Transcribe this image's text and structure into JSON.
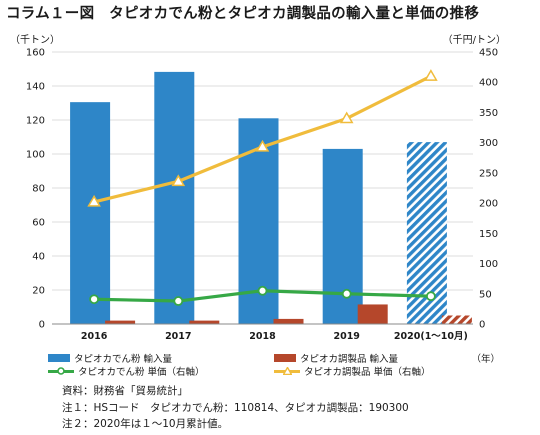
{
  "title": "コラム１ー図　タピオカでん粉とタピオカ調製品の輸入量と単価の推移",
  "left_unit": "（千トン）",
  "right_unit": "（千円/トン）",
  "x_unit": "（年）",
  "chart_data": {
    "type": "bar",
    "categories": [
      "2016",
      "2017",
      "2018",
      "2019",
      "2020(1〜10月)"
    ],
    "y_left": {
      "min": 0,
      "max": 160,
      "ticks": [
        0,
        20,
        40,
        60,
        80,
        100,
        120,
        140,
        160
      ]
    },
    "y_right": {
      "min": 0,
      "max": 450,
      "ticks": [
        0,
        50,
        100,
        150,
        200,
        250,
        300,
        350,
        400,
        450
      ]
    },
    "grid": true,
    "legend_position": "bottom",
    "series": [
      {
        "name": "タピオカでん粉 輸入量",
        "kind": "bar",
        "axis": "left",
        "color": "#2e86c8",
        "values": [
          130.5,
          148.3,
          121,
          103,
          107
        ],
        "hatched_last": true
      },
      {
        "name": "タピオカ調製品 輸入量",
        "kind": "bar",
        "axis": "left",
        "color": "#b5472b",
        "values": [
          2,
          2,
          3,
          11.5,
          5
        ],
        "hatched_last": true
      },
      {
        "name": "タピオカでん粉 単価（右軸）",
        "kind": "line",
        "axis": "right",
        "color": "#36a846",
        "marker": "circle",
        "values": [
          41,
          38,
          55,
          50,
          46
        ]
      },
      {
        "name": "タピオカ調製品 単価（右軸）",
        "kind": "line",
        "axis": "right",
        "color": "#f0bc3c",
        "marker": "triangle",
        "values": [
          202,
          236,
          293,
          340,
          410
        ]
      }
    ]
  },
  "notes": [
    "資料：財務省「貿易統計」",
    "注１：HSコード　タピオカでん粉：110814、タピオカ調製品：190300",
    "注２：2020年は１～10月累計値。"
  ]
}
